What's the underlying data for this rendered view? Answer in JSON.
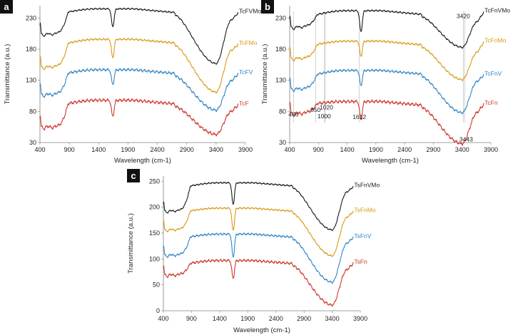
{
  "colors": {
    "black": "#1a1a1a",
    "orange": "#d99a14",
    "blue": "#2f86c8",
    "red": "#cf3a2e",
    "axis": "#808080",
    "marker_line": "#b4b4b4"
  },
  "chart_data": [
    {
      "type": "line",
      "panel": "a",
      "xlabel": "Wavelength (cm-1)",
      "ylabel": "Transmittance (a.u.)",
      "xlim": [
        400,
        3900
      ],
      "ylim": [
        30,
        250
      ],
      "xticks": [
        400,
        900,
        1400,
        1900,
        2400,
        2900,
        3400,
        3900
      ],
      "yticks": [
        30,
        80,
        130,
        180,
        230
      ],
      "markers": [],
      "annotations": [],
      "series": [
        {
          "name": "TcFVMo",
          "color": "black",
          "base": 240,
          "plateau": 245,
          "band1700": 216,
          "band3400": 163,
          "tail": 239,
          "wiggle": 0.8,
          "lowfreq": [
            205,
            208
          ],
          "label_near": 3850
        },
        {
          "name": "TcFMo",
          "color": "orange",
          "base": 190,
          "plateau": 196,
          "band1700": 166,
          "band3400": 117,
          "tail": 188,
          "wiggle": 1.0,
          "lowfreq": [
            152,
            156
          ],
          "label_near": 3850
        },
        {
          "name": "TcFV",
          "color": "blue",
          "base": 142,
          "plateau": 147,
          "band1700": 123,
          "band3400": 88,
          "tail": 141,
          "wiggle": 1.4,
          "lowfreq": [
            108,
            111
          ],
          "label_near": 3850
        },
        {
          "name": "TcF",
          "color": "red",
          "base": 93,
          "plateau": 98,
          "band1700": 72,
          "band3400": 49,
          "tail": 91,
          "wiggle": 1.6,
          "lowfreq": [
            56,
            58
          ],
          "label_near": 3850
        }
      ]
    },
    {
      "type": "line",
      "panel": "b",
      "xlabel": "Wavelength (cm-1)",
      "ylabel": "Transmittance (a.u.)",
      "xlim": [
        400,
        3900
      ],
      "ylim": [
        30,
        250
      ],
      "xticks": [
        400,
        900,
        1400,
        1900,
        2400,
        2900,
        3400,
        3900
      ],
      "yticks": [
        30,
        80,
        130,
        180,
        230
      ],
      "markers": [
        466,
        850,
        1000,
        1020,
        1612,
        3420,
        3443
      ],
      "annotations": [
        {
          "text": "466",
          "x": 466,
          "y": 72
        },
        {
          "text": "850",
          "x": 850,
          "y": 79
        },
        {
          "text": "1000",
          "x": 1000,
          "y": 69
        },
        {
          "text": "1020",
          "x": 1040,
          "y": 83
        },
        {
          "text": "1612",
          "x": 1612,
          "y": 68
        },
        {
          "text": "3420",
          "x": 3420,
          "y": 230
        },
        {
          "text": "3443",
          "x": 3470,
          "y": 32
        }
      ],
      "series": [
        {
          "name": "TcFnVMo",
          "color": "black",
          "base": 236,
          "plateau": 242,
          "band1700": 208,
          "band3400": 189,
          "tail": 240,
          "wiggle": 0.9,
          "lowfreq": [
            216,
            220
          ],
          "label_near": 3850
        },
        {
          "name": "TcFnMo",
          "color": "orange",
          "base": 188,
          "plateau": 193,
          "band1700": 168,
          "band3400": 137,
          "tail": 192,
          "wiggle": 1.0,
          "lowfreq": [
            166,
            169
          ],
          "label_near": 3850
        },
        {
          "name": "TcFnV",
          "color": "blue",
          "base": 140,
          "plateau": 146,
          "band1700": 121,
          "band3400": 84,
          "tail": 139,
          "wiggle": 1.2,
          "lowfreq": [
            117,
            120
          ],
          "label_near": 3850
        },
        {
          "name": "TcFn",
          "color": "red",
          "base": 93,
          "plateau": 96,
          "band1700": 66,
          "band3400": 34,
          "tail": 92,
          "wiggle": 1.6,
          "lowfreq": [
            78,
            80
          ],
          "label_near": 3850
        }
      ]
    },
    {
      "type": "line",
      "panel": "c",
      "xlabel": "Wavelength (cm-1)",
      "ylabel": "Transmittance (a.u.)",
      "xlim": [
        400,
        3900
      ],
      "ylim": [
        0,
        260
      ],
      "xticks": [
        400,
        900,
        1400,
        1900,
        2400,
        2900,
        3400,
        3900
      ],
      "yticks": [
        0,
        50,
        100,
        150,
        200,
        250
      ],
      "markers": [],
      "annotations": [],
      "series": [
        {
          "name": "TsFnVMo",
          "color": "black",
          "base": 241,
          "plateau": 247,
          "band1700": 205,
          "band3400": 162,
          "tail": 240,
          "wiggle": 0.9,
          "lowfreq": [
            193,
            197
          ],
          "label_near": 3850
        },
        {
          "name": "TsFnMo",
          "color": "orange",
          "base": 193,
          "plateau": 198,
          "band1700": 155,
          "band3400": 112,
          "tail": 192,
          "wiggle": 1.0,
          "lowfreq": [
            157,
            160
          ],
          "label_near": 3850
        },
        {
          "name": "TsFnV",
          "color": "blue",
          "base": 143,
          "plateau": 148,
          "band1700": 103,
          "band3400": 61,
          "tail": 142,
          "wiggle": 1.3,
          "lowfreq": [
            108,
            111
          ],
          "label_near": 3850
        },
        {
          "name": "TsFn",
          "color": "red",
          "base": 92,
          "plateau": 97,
          "band1700": 62,
          "band3400": 17,
          "tail": 92,
          "wiggle": 1.6,
          "lowfreq": [
            70,
            72
          ],
          "label_near": 3850
        }
      ]
    }
  ]
}
